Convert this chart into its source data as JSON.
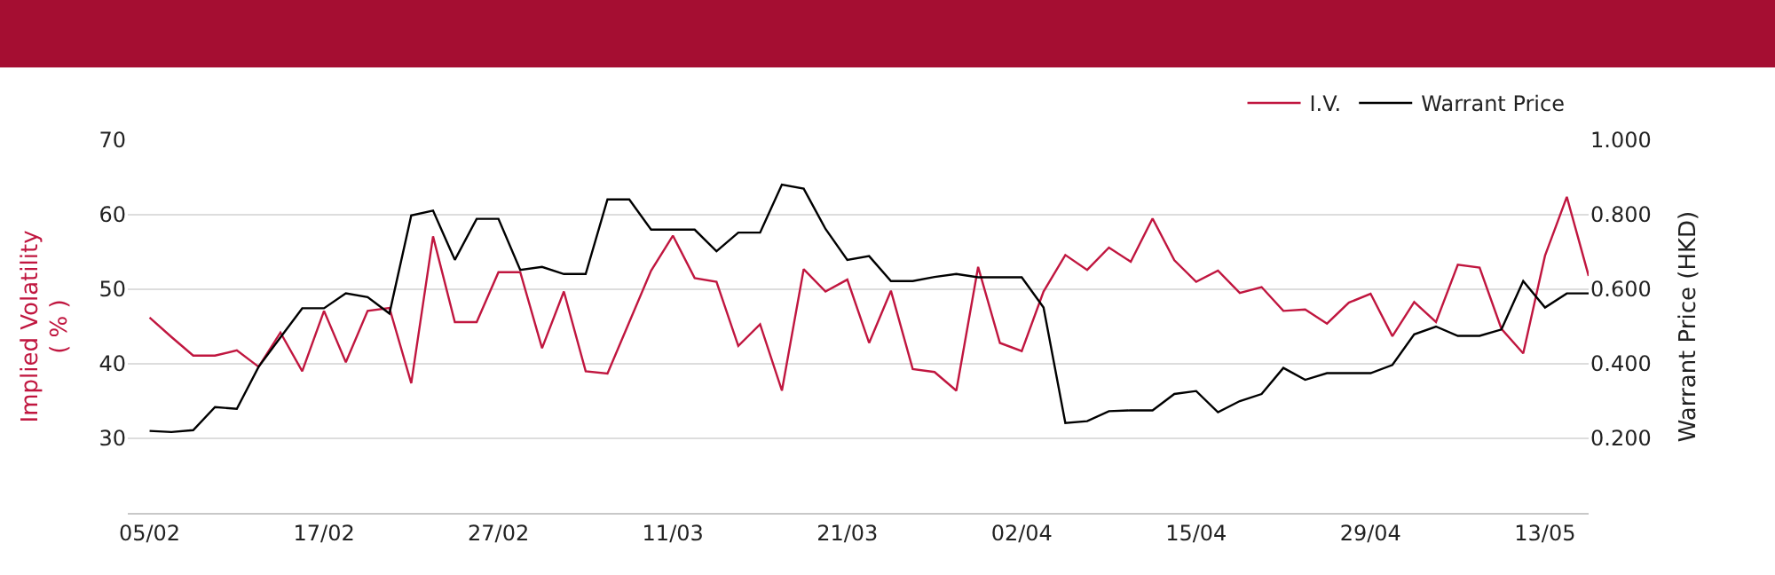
{
  "chart_data": {
    "type": "line",
    "ylabel": "Implied Volatility\n( % )",
    "y2label": "Warrant Price (HKD)",
    "categories": [
      "05/02",
      null,
      null,
      null,
      null,
      null,
      null,
      null,
      "17/02",
      null,
      null,
      null,
      null,
      null,
      null,
      null,
      "27/02",
      null,
      null,
      null,
      null,
      null,
      null,
      null,
      "11/03",
      null,
      null,
      null,
      null,
      null,
      null,
      null,
      "21/03",
      null,
      null,
      null,
      null,
      null,
      null,
      null,
      "02/04",
      null,
      null,
      null,
      null,
      null,
      null,
      null,
      "15/04",
      null,
      null,
      null,
      null,
      null,
      null,
      null,
      "29/04",
      null,
      null,
      null,
      null,
      null,
      null,
      null,
      "13/05",
      null,
      null
    ],
    "series": [
      {
        "name": "I.V.",
        "color": "#c0163f",
        "values": [
          46.2,
          43.6,
          41.1,
          41.1,
          41.8,
          39.6,
          44.2,
          39.0,
          47.1,
          40.2,
          47.1,
          47.5,
          37.4,
          57.1,
          45.6,
          45.6,
          52.3,
          52.3,
          42.1,
          49.7,
          39.0,
          38.7,
          45.6,
          52.5,
          57.2,
          51.5,
          51.0,
          42.4,
          45.3,
          36.4,
          52.7,
          49.7,
          51.3,
          42.8,
          49.8,
          39.3,
          38.9,
          36.4,
          53.0,
          42.8,
          41.7,
          49.7,
          54.6,
          52.6,
          55.6,
          53.7,
          59.5,
          53.9,
          51.0,
          52.5,
          49.5,
          50.3,
          47.1,
          47.3,
          45.4,
          48.2,
          49.4,
          43.7,
          48.3,
          45.6,
          53.3,
          52.9,
          44.7,
          41.4,
          54.5,
          62.4,
          51.8
        ]
      },
      {
        "name": "Warrant Price",
        "color": "#000000",
        "axis": "y2",
        "values": [
          0.22,
          0.217,
          0.222,
          0.284,
          0.279,
          0.392,
          0.471,
          0.549,
          0.549,
          0.589,
          0.579,
          0.535,
          0.798,
          0.811,
          0.679,
          0.789,
          0.789,
          0.652,
          0.66,
          0.641,
          0.641,
          0.841,
          0.841,
          0.76,
          0.76,
          0.76,
          0.702,
          0.752,
          0.752,
          0.881,
          0.87,
          0.762,
          0.679,
          0.689,
          0.622,
          0.622,
          0.633,
          0.641,
          0.632,
          0.632,
          0.632,
          0.551,
          0.241,
          0.246,
          0.273,
          0.275,
          0.275,
          0.319,
          0.327,
          0.27,
          0.3,
          0.319,
          0.389,
          0.357,
          0.375,
          0.375,
          0.375,
          0.397,
          0.479,
          0.5,
          0.475,
          0.475,
          0.492,
          0.622,
          0.551,
          0.589,
          0.589
        ]
      }
    ],
    "ylim": [
      20,
      70
    ],
    "yticks": [
      30,
      40,
      50,
      60,
      70
    ],
    "y2lim": [
      0,
      1
    ],
    "y2ticks": [
      {
        "value": 0.2,
        "label": "0.200"
      },
      {
        "value": 0.4,
        "label": "0.400"
      },
      {
        "value": 0.6,
        "label": "0.600"
      },
      {
        "value": 0.8,
        "label": "0.800"
      },
      {
        "value": 1,
        "label": "1.000"
      }
    ],
    "grid": "y",
    "legend": "top right",
    "marker": "none",
    "line_style": "solid"
  }
}
